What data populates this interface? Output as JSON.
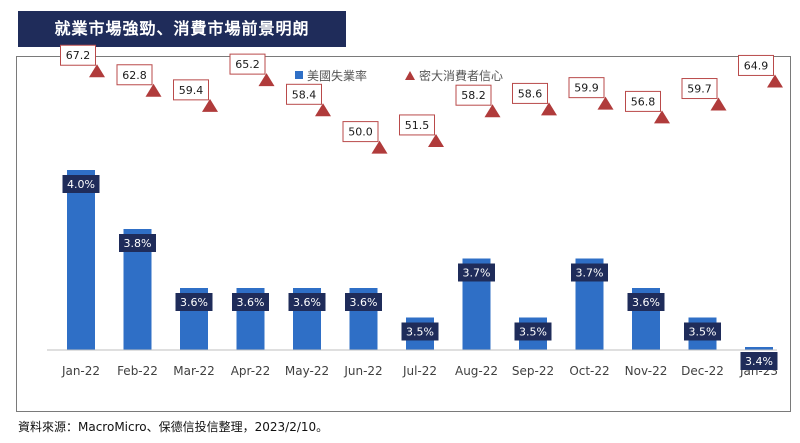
{
  "title": "就業市場強勁、消費市場前景明朗",
  "source_note": "資料來源：MacroMicro、保德信投信整理，2023/2/10。",
  "colors": {
    "bar": "#2f6fc6",
    "bar_label_bg": "#1f2c5a",
    "marker": "#b03b3b",
    "title_bg": "#1f2c5a"
  },
  "chart_data": {
    "type": "bar",
    "categories": [
      "Jan-22",
      "Feb-22",
      "Mar-22",
      "Apr-22",
      "May-22",
      "Jun-22",
      "Jul-22",
      "Aug-22",
      "Sep-22",
      "Oct-22",
      "Nov-22",
      "Dec-22",
      "Jan-23"
    ],
    "series": [
      {
        "name": "美國失業率",
        "type": "bar",
        "values": [
          4.0,
          3.8,
          3.6,
          3.6,
          3.6,
          3.6,
          3.5,
          3.7,
          3.5,
          3.7,
          3.6,
          3.5,
          3.4
        ],
        "labels": [
          "4.0%",
          "3.8%",
          "3.6%",
          "3.6%",
          "3.6%",
          "3.6%",
          "3.5%",
          "3.7%",
          "3.5%",
          "3.7%",
          "3.6%",
          "3.5%",
          "3.4%"
        ]
      },
      {
        "name": "密大消費者信心",
        "type": "scatter",
        "marker": "triangle",
        "values": [
          67.2,
          62.8,
          59.4,
          65.2,
          58.4,
          50.0,
          51.5,
          58.2,
          58.6,
          59.9,
          56.8,
          59.7,
          64.9
        ],
        "labels": [
          "67.2",
          "62.8",
          "59.4",
          "65.2",
          "58.4",
          "50.0",
          "51.5",
          "58.2",
          "58.6",
          "59.9",
          "56.8",
          "59.7",
          "64.9"
        ]
      }
    ],
    "legend": "top-center",
    "grid": false
  }
}
